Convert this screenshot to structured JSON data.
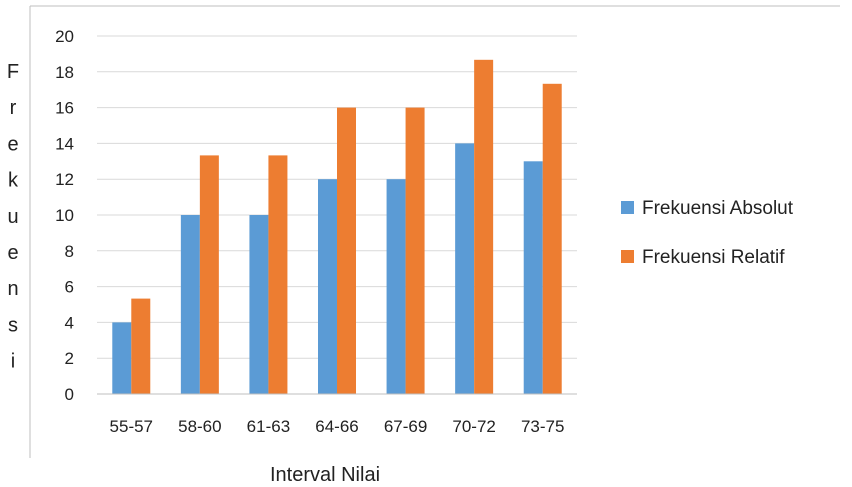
{
  "chart_data": {
    "type": "bar",
    "title": "",
    "xlabel": "Interval Nilai",
    "ylabel": "Frekuensi",
    "categories": [
      "55-57",
      "58-60",
      "61-63",
      "64-66",
      "67-69",
      "70-72",
      "73-75"
    ],
    "series": [
      {
        "name": "Frekuensi Absolut",
        "values": [
          4,
          10,
          10,
          12,
          12,
          14,
          13
        ],
        "color": "#5b9bd5"
      },
      {
        "name": "Frekuensi Relatif",
        "values": [
          5.33,
          13.33,
          13.33,
          16,
          16,
          18.67,
          17.33
        ],
        "color": "#ed7d31"
      }
    ],
    "ylim": [
      0,
      20
    ],
    "yticks": [
      0,
      2,
      4,
      6,
      8,
      10,
      12,
      14,
      16,
      18,
      20
    ],
    "grid": true,
    "legend_position": "right"
  }
}
